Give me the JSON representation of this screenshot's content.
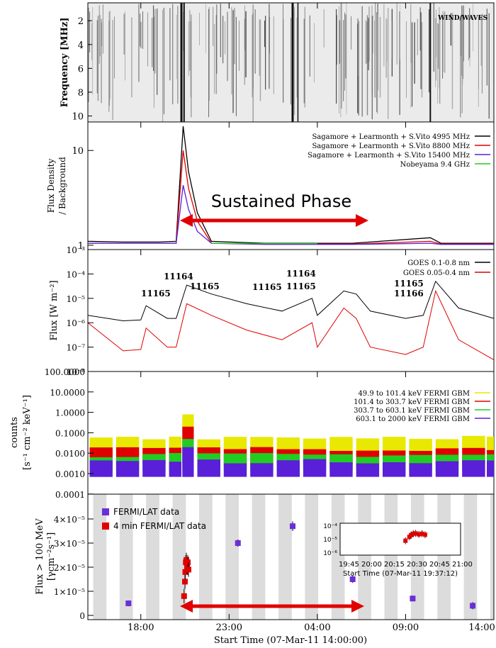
{
  "figure": {
    "x_axis_label": "Start Time (07-Mar-11 14:00:00)",
    "x_ticks": [
      "18:00",
      "23:00",
      "04:00",
      "09:00",
      "14:00"
    ],
    "sustained_phase_label": "Sustained Phase"
  },
  "panel1": {
    "ylabel": "Frequency [MHz]",
    "yticks": [
      "2",
      "4",
      "6",
      "8",
      "10"
    ],
    "annotation": "WIND/WAVES"
  },
  "panel2": {
    "ylabel_line1": "Flux Density",
    "ylabel_line2": "/ Background",
    "yticks": [
      "10",
      "1"
    ],
    "legend": [
      {
        "label": "Sagamore + Learmonth + S.Vito 4995 MHz",
        "color": "#000000"
      },
      {
        "label": "Sagamore + Learmonth + S.Vito 8800 MHz",
        "color": "#e00000"
      },
      {
        "label": "Sagamore + Learmonth + S.Vito 15400 MHz",
        "color": "#5a1fd8"
      },
      {
        "label": "Nobeyama 9.4 GHz",
        "color": "#22cc22"
      }
    ]
  },
  "panel3": {
    "ylabel": "Flux [W m⁻²]",
    "yticks": [
      "10⁻³",
      "10⁻⁴",
      "10⁻⁵",
      "10⁻⁶",
      "10⁻⁷",
      "10⁻⁸"
    ],
    "legend": [
      {
        "label": "GOES 0.1-0.8 nm",
        "color": "#000000"
      },
      {
        "label": "GOES 0.05-0.4 nm",
        "color": "#e00000"
      }
    ],
    "region_labels": [
      {
        "text": "11165"
      },
      {
        "text": "11164"
      },
      {
        "text": "11165"
      },
      {
        "text": "11165"
      },
      {
        "text": "11164"
      },
      {
        "text": "11165"
      },
      {
        "text": "11165"
      },
      {
        "text": "11166"
      }
    ]
  },
  "panel4": {
    "ylabel_line1": "counts",
    "ylabel_line2": "[s⁻¹ cm⁻² keV⁻¹]",
    "yticks": [
      "100.0000",
      "10.0000",
      "1.0000",
      "0.1000",
      "0.0100",
      "0.0010",
      "0.0001"
    ],
    "legend": [
      {
        "label": "49.9 to 101.4 keV FERMI GBM",
        "color": "#e8e800"
      },
      {
        "label": "101.4 to 303.7 keV FERMI GBM",
        "color": "#e00000"
      },
      {
        "label": "303.7 to 603.1 keV FERMI GBM",
        "color": "#22cc22"
      },
      {
        "label": "603.1 to 2000 keV FERMI GBM",
        "color": "#5a1fd8"
      }
    ]
  },
  "panel5": {
    "ylabel_line1": "Flux > 100 MeV",
    "ylabel_line2": "[γcm⁻²s⁻¹]",
    "yticks": [
      "4×10⁻⁵",
      "3×10⁻⁵",
      "2×10⁻⁵",
      "1×10⁻⁵",
      "0"
    ],
    "legend": [
      {
        "label": "FERMI/LAT data",
        "color": "#6a2fd8"
      },
      {
        "label": "4 min FERMI/LAT data",
        "color": "#e00000"
      }
    ],
    "inset": {
      "yticks": [
        "10⁻⁴",
        "10⁻⁵",
        "10⁻⁶"
      ],
      "xticks": "19:45 20:00 20:15 20:30 20:45 21:00",
      "xlabel": "Start Time (07-Mar-11 19:37:12)"
    }
  },
  "chart_data": [
    {
      "type": "heatmap",
      "title": "WIND/WAVES",
      "ylabel": "Frequency [MHz]",
      "ylim": [
        10.5,
        0.5
      ],
      "note": "radio dynamic spectrum, dark vertical type III bursts"
    },
    {
      "type": "line",
      "ylabel": "Flux Density / Background",
      "yscale": "log",
      "ylim": [
        0.9,
        20
      ],
      "x": [
        15.0,
        17.0,
        19.0,
        20.0,
        20.4,
        20.7,
        21.2,
        22.0,
        25.0,
        28.0,
        30.0,
        34.4,
        35.0,
        38.0
      ],
      "series": [
        {
          "name": "Sagamore + Learmonth + S.Vito 4995 MHz",
          "values": [
            1.1,
            1.08,
            1.08,
            1.1,
            18,
            6,
            2.2,
            1.1,
            1.05,
            1.05,
            1.05,
            1.2,
            1.05,
            1.05
          ]
        },
        {
          "name": "Sagamore + Learmonth + S.Vito 8800 MHz",
          "values": [
            1.05,
            1.05,
            1.05,
            1.05,
            10,
            4,
            1.8,
            1.05,
            1.03,
            1.03,
            1.03,
            1.1,
            1.03,
            1.03
          ]
        },
        {
          "name": "Sagamore + Learmonth + S.Vito 15400 MHz",
          "values": [
            1.05,
            1.05,
            1.05,
            1.05,
            4.3,
            2.4,
            1.4,
            1.05,
            1.02,
            1.02,
            1.02,
            1.05,
            1.02,
            1.02
          ]
        },
        {
          "name": "Nobeyama 9.4 GHz",
          "values": [
            null,
            null,
            null,
            null,
            null,
            null,
            null,
            1.05,
            1.04,
            1.04,
            null,
            null,
            null,
            null
          ]
        }
      ]
    },
    {
      "type": "line",
      "ylabel": "Flux [W m⁻²]",
      "yscale": "log",
      "ylim": [
        1e-08,
        0.001
      ],
      "x": [
        15.0,
        17.0,
        18.0,
        18.3,
        19.5,
        20.0,
        20.6,
        22.0,
        24.0,
        26.0,
        27.7,
        28.0,
        29.5,
        30.2,
        31.0,
        33.0,
        34.0,
        34.7,
        36.0,
        38.0
      ],
      "series": [
        {
          "name": "GOES 0.1-0.8 nm",
          "values": [
            2e-06,
            1.2e-06,
            1.3e-06,
            5e-06,
            1.5e-06,
            1.5e-06,
            3.5e-05,
            1.5e-05,
            6e-06,
            3e-06,
            1e-05,
            2e-06,
            2e-05,
            1.5e-05,
            3e-06,
            1.5e-06,
            2e-06,
            5e-05,
            4e-06,
            1.5e-06
          ]
        },
        {
          "name": "GOES 0.05-0.4 nm",
          "values": [
            1e-06,
            7e-08,
            8e-08,
            6e-07,
            1e-07,
            1e-07,
            6e-06,
            2e-06,
            5e-07,
            2e-07,
            1e-06,
            1e-07,
            4e-06,
            1.5e-06,
            1e-07,
            5e-08,
            1e-07,
            2e-05,
            2e-07,
            3e-08
          ]
        }
      ]
    },
    {
      "type": "line",
      "ylabel": "counts [s⁻¹ cm⁻² keV⁻¹]",
      "yscale": "log",
      "ylim": [
        0.0001,
        100
      ],
      "note": "orbit-interrupted GBM count rates, flare at ~20:30",
      "series": [
        {
          "name": "49.9 to 101.4 keV FERMI GBM",
          "typical": 0.03,
          "peak": 0.8
        },
        {
          "name": "101.4 to 303.7 keV FERMI GBM",
          "typical": 0.008,
          "peak": 0.2
        },
        {
          "name": "303.7 to 603.1 keV FERMI GBM",
          "typical": 0.004,
          "peak": 0.05
        },
        {
          "name": "603.1 to 2000 keV FERMI GBM",
          "typical": 0.002,
          "peak": 0.02
        }
      ]
    },
    {
      "type": "scatter",
      "ylabel": "Flux > 100 MeV [γcm⁻²s⁻¹]",
      "ylim": [
        0,
        4e-05
      ],
      "xlabel": "Start Time (07-Mar-11 14:00:00)",
      "series": [
        {
          "name": "FERMI/LAT data",
          "x": [
            17.3,
            23.5,
            26.6,
            30.0,
            33.4,
            36.8
          ],
          "values": [
            5e-06,
            3e-05,
            3.7e-05,
            1.5e-05,
            7e-06,
            4e-06
          ],
          "err": [
            1.2e-06,
            1.5e-06,
            2e-06,
            1.5e-06,
            1.2e-06,
            1.5e-06
          ]
        },
        {
          "name": "4 min FERMI/LAT data",
          "x": [
            20.45,
            20.5,
            20.52,
            20.55,
            20.58,
            20.62,
            20.66,
            20.7
          ],
          "values": [
            8e-06,
            1.4e-05,
            1.8e-05,
            2.2e-05,
            2.3e-05,
            2e-05,
            2.2e-05,
            1.9e-05
          ],
          "err": [
            3e-06,
            3e-06,
            3e-06,
            3e-06,
            3e-06,
            3e-06,
            3e-06,
            3e-06
          ]
        }
      ]
    }
  ]
}
